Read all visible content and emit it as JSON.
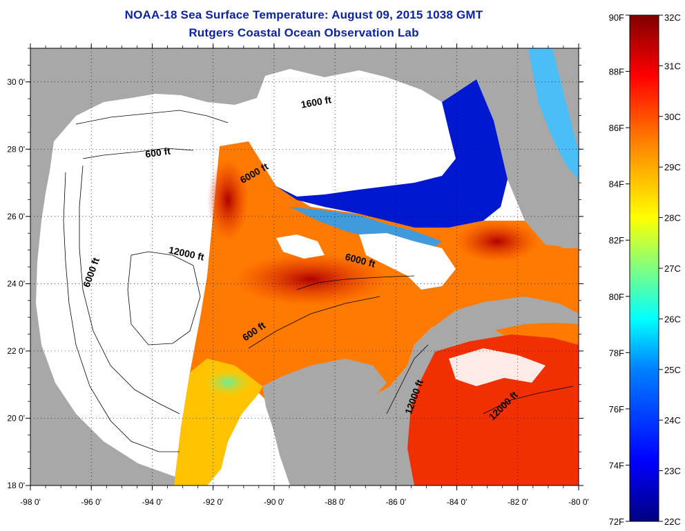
{
  "title": "NOAA-18 Sea Surface Temperature:  August 09, 2015 1038 GMT",
  "subtitle": "Rutgers Coastal Ocean Observation Lab",
  "map": {
    "xlim": [
      -98,
      -80
    ],
    "ylim": [
      18,
      31
    ],
    "x_ticks": [
      {
        "value": -98,
        "label": "-98 0'"
      },
      {
        "value": -96,
        "label": "-96 0'"
      },
      {
        "value": -94,
        "label": "-94 0'"
      },
      {
        "value": -92,
        "label": "-92 0'"
      },
      {
        "value": -90,
        "label": "-90 0'"
      },
      {
        "value": -88,
        "label": "-88 0'"
      },
      {
        "value": -86,
        "label": "-86 0'"
      },
      {
        "value": -84,
        "label": "-84 0'"
      },
      {
        "value": -82,
        "label": "-82 0'"
      },
      {
        "value": -80,
        "label": "-80 0'"
      }
    ],
    "y_ticks": [
      {
        "value": 18,
        "label": "18 0'"
      },
      {
        "value": 20,
        "label": "20 0'"
      },
      {
        "value": 22,
        "label": "22 0'"
      },
      {
        "value": 24,
        "label": "24 0'"
      },
      {
        "value": 26,
        "label": "26 0'"
      },
      {
        "value": 28,
        "label": "28 0'"
      },
      {
        "value": 30,
        "label": "30 0'"
      }
    ],
    "grid": "dotted",
    "contour_labels": [
      {
        "text": "600 ft",
        "lon": -93.8,
        "lat": 27.8
      },
      {
        "text": "6000 ft",
        "lon": -95.9,
        "lat": 24.3
      },
      {
        "text": "12000 ft",
        "lon": -92.9,
        "lat": 24.8
      },
      {
        "text": "6000 ft",
        "lon": -90.6,
        "lat": 27.2
      },
      {
        "text": "1600 ft",
        "lon": -88.6,
        "lat": 29.3
      },
      {
        "text": "6000 ft",
        "lon": -87.2,
        "lat": 24.6
      },
      {
        "text": "600 ft",
        "lon": -90.6,
        "lat": 22.5
      },
      {
        "text": "12000 ft",
        "lon": -85.3,
        "lat": 20.6
      },
      {
        "text": "12000 ft",
        "lon": -82.4,
        "lat": 20.3
      }
    ]
  },
  "colorbar": {
    "range_f": [
      72,
      90
    ],
    "range_c": [
      22,
      32
    ],
    "f_labels": [
      "90F",
      "88F",
      "86F",
      "84F",
      "82F",
      "80F",
      "78F",
      "76F",
      "74F",
      "72F"
    ],
    "c_labels": [
      "32C",
      "31C",
      "30C",
      "29C",
      "28C",
      "27C",
      "26C",
      "25C",
      "24C",
      "23C",
      "22C"
    ],
    "colormap": [
      "#00007f",
      "#0000ff",
      "#0080ff",
      "#00ffff",
      "#80ff80",
      "#ffff00",
      "#ff8000",
      "#ff0000",
      "#7f0000"
    ]
  },
  "colors": {
    "title": "#0a22a8",
    "land": "#a8a8a8",
    "cloud": "#ffffff"
  }
}
